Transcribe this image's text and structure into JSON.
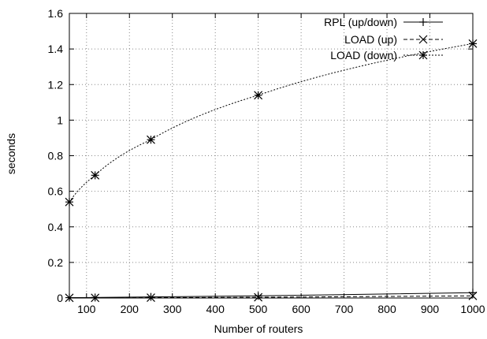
{
  "chart_data": {
    "type": "line",
    "xlabel": "Number of routers",
    "ylabel": "seconds",
    "xlim": [
      60,
      1000
    ],
    "ylim": [
      0,
      1.6
    ],
    "x_ticks": [
      100,
      200,
      300,
      400,
      500,
      600,
      700,
      800,
      900,
      1000
    ],
    "y_ticks": [
      0,
      0.2,
      0.4,
      0.6,
      0.8,
      1,
      1.2,
      1.4,
      1.6
    ],
    "x_tick_labels": [
      "100",
      "200",
      "300",
      "400",
      "500",
      "600",
      "700",
      "800",
      "900",
      "1000"
    ],
    "y_tick_labels": [
      "0",
      "0.2",
      "0.4",
      "0.6",
      "0.8",
      "1",
      "1.2",
      "1.4",
      "1.6"
    ],
    "grid": true,
    "legend_position": "top-right",
    "series": [
      {
        "name": "RPL (up/down)",
        "line_style": "solid",
        "marker": "plus",
        "x": [
          60,
          120,
          250,
          500,
          1000
        ],
        "y": [
          0.002,
          0.003,
          0.006,
          0.012,
          0.03
        ]
      },
      {
        "name": "LOAD (up)",
        "line_style": "dashed",
        "marker": "cross",
        "x": [
          60,
          120,
          250,
          500,
          1000
        ],
        "y": [
          0.001,
          0.001,
          0.002,
          0.004,
          0.012
        ]
      },
      {
        "name": "LOAD (down)",
        "line_style": "dotted",
        "marker": "star",
        "x": [
          60,
          120,
          250,
          500,
          1000
        ],
        "y": [
          0.54,
          0.69,
          0.89,
          1.14,
          1.43
        ]
      }
    ]
  }
}
